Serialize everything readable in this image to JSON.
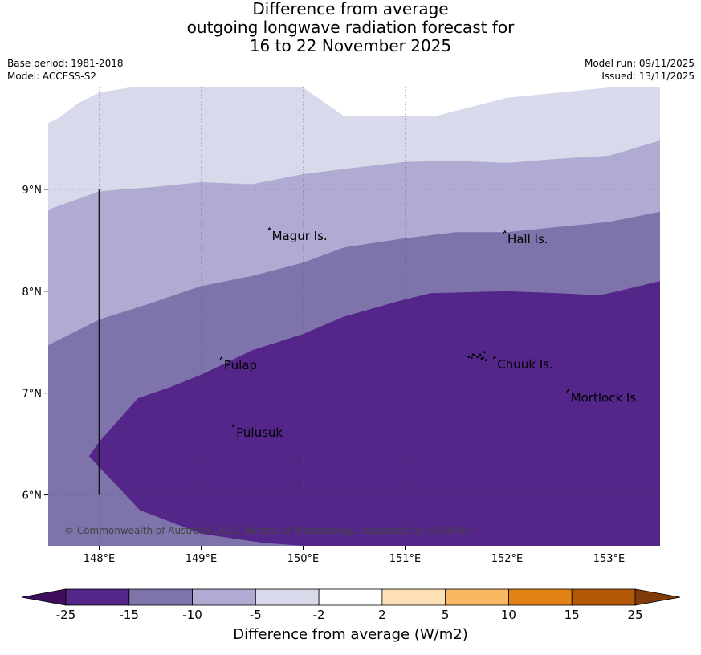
{
  "title": {
    "line1": "Difference from average",
    "line2": "outgoing longwave radiation forecast for",
    "line3": "16 to 22 November 2025"
  },
  "meta": {
    "base_period": "Base period: 1981-2018",
    "model": "Model: ACCESS-S2",
    "model_run": "Model run: 09/11/2025",
    "issued": "Issued: 13/11/2025"
  },
  "map": {
    "lon_range": [
      147.5,
      153.5
    ],
    "lat_range": [
      5.5,
      10.0
    ],
    "lon_ticks": [
      {
        "value": 148,
        "label": "148°E"
      },
      {
        "value": 149,
        "label": "149°E"
      },
      {
        "value": 150,
        "label": "150°E"
      },
      {
        "value": 151,
        "label": "151°E"
      },
      {
        "value": 152,
        "label": "152°E"
      },
      {
        "value": 153,
        "label": "153°E"
      }
    ],
    "lat_ticks": [
      {
        "value": 9,
        "label": "9°N"
      },
      {
        "value": 8,
        "label": "8°N"
      },
      {
        "value": 7,
        "label": "7°N"
      },
      {
        "value": 6,
        "label": "6°N"
      }
    ],
    "places": [
      {
        "name": "Magur Is.",
        "lon": 149.67,
        "lat": 8.55
      },
      {
        "name": "Hall Is.",
        "lon": 151.98,
        "lat": 8.52
      },
      {
        "name": "Pulap",
        "lon": 149.2,
        "lat": 7.28
      },
      {
        "name": "Chuuk Is.",
        "lon": 151.88,
        "lat": 7.29
      },
      {
        "name": "Mortlock Is.",
        "lon": 152.6,
        "lat": 6.96
      },
      {
        "name": "Pulusuk",
        "lon": 149.32,
        "lat": 6.62
      }
    ],
    "boundary_line": {
      "lon": 148.0,
      "lat_from": 6.0,
      "lat_to": 9.0
    },
    "copyright": "© Commonwealth of Australia 2025, Bureau of Meteorology, supported by COSPPac",
    "regions": [
      {
        "name": "-5 to -2",
        "color": "#d8d9ea",
        "lon": [
          147.5,
          147.6,
          147.8,
          148.0,
          148.3,
          149.0,
          149.5,
          150.0,
          150.4,
          151.0,
          151.3,
          152.0,
          153.0,
          153.5,
          153.5,
          147.5
        ],
        "lat": [
          9.65,
          9.7,
          9.85,
          9.95,
          10.0,
          10.0,
          10.0,
          10.0,
          9.72,
          9.72,
          9.72,
          9.9,
          10.0,
          10.0,
          5.5,
          5.5
        ]
      },
      {
        "name": "-10 to -5",
        "color": "#b0abd2",
        "lon": [
          147.5,
          148.0,
          148.5,
          149.0,
          149.5,
          150.0,
          150.4,
          151.0,
          151.5,
          152.0,
          152.5,
          153.0,
          153.5,
          153.5,
          147.5
        ],
        "lat": [
          8.8,
          8.98,
          9.02,
          9.07,
          9.05,
          9.15,
          9.2,
          9.27,
          9.28,
          9.26,
          9.3,
          9.33,
          9.48,
          5.5,
          5.5
        ]
      },
      {
        "name": "-15 to -10",
        "color": "#7f73ab",
        "lon": [
          147.5,
          148.0,
          148.5,
          149.0,
          149.5,
          150.0,
          150.4,
          151.0,
          151.5,
          152.0,
          152.5,
          153.0,
          153.5,
          153.5,
          147.5
        ],
        "lat": [
          7.47,
          7.72,
          7.88,
          8.05,
          8.15,
          8.28,
          8.43,
          8.52,
          8.58,
          8.58,
          8.63,
          8.68,
          8.78,
          5.5,
          5.5
        ]
      },
      {
        "name": "-25 to -15",
        "color": "#54268a",
        "lon": [
          147.9,
          148.0,
          148.38,
          148.7,
          149.0,
          149.5,
          150.0,
          150.4,
          151.0,
          151.25,
          152.0,
          152.5,
          152.9,
          153.0,
          153.5,
          153.5,
          151.0,
          150.0,
          149.6,
          149.0,
          148.4
        ],
        "lat": [
          6.38,
          6.52,
          6.95,
          7.06,
          7.18,
          7.42,
          7.58,
          7.75,
          7.92,
          7.98,
          8.0,
          7.98,
          7.96,
          7.98,
          8.1,
          5.5,
          5.5,
          5.5,
          5.53,
          5.62,
          5.85
        ]
      }
    ]
  },
  "colorbar": {
    "title": "Difference from average (W/m2)",
    "under_color": "#3f0d5e",
    "over_color": "#7f3b08",
    "colors": [
      "#54268a",
      "#7f73ab",
      "#b0abd2",
      "#d8d9ea",
      "#ffffff",
      "#fde0b6",
      "#fbb863",
      "#e08214",
      "#b35806"
    ],
    "tick_labels": [
      "-25",
      "-15",
      "-10",
      "-5",
      "-2",
      "2",
      "5",
      "10",
      "15",
      "25"
    ]
  }
}
